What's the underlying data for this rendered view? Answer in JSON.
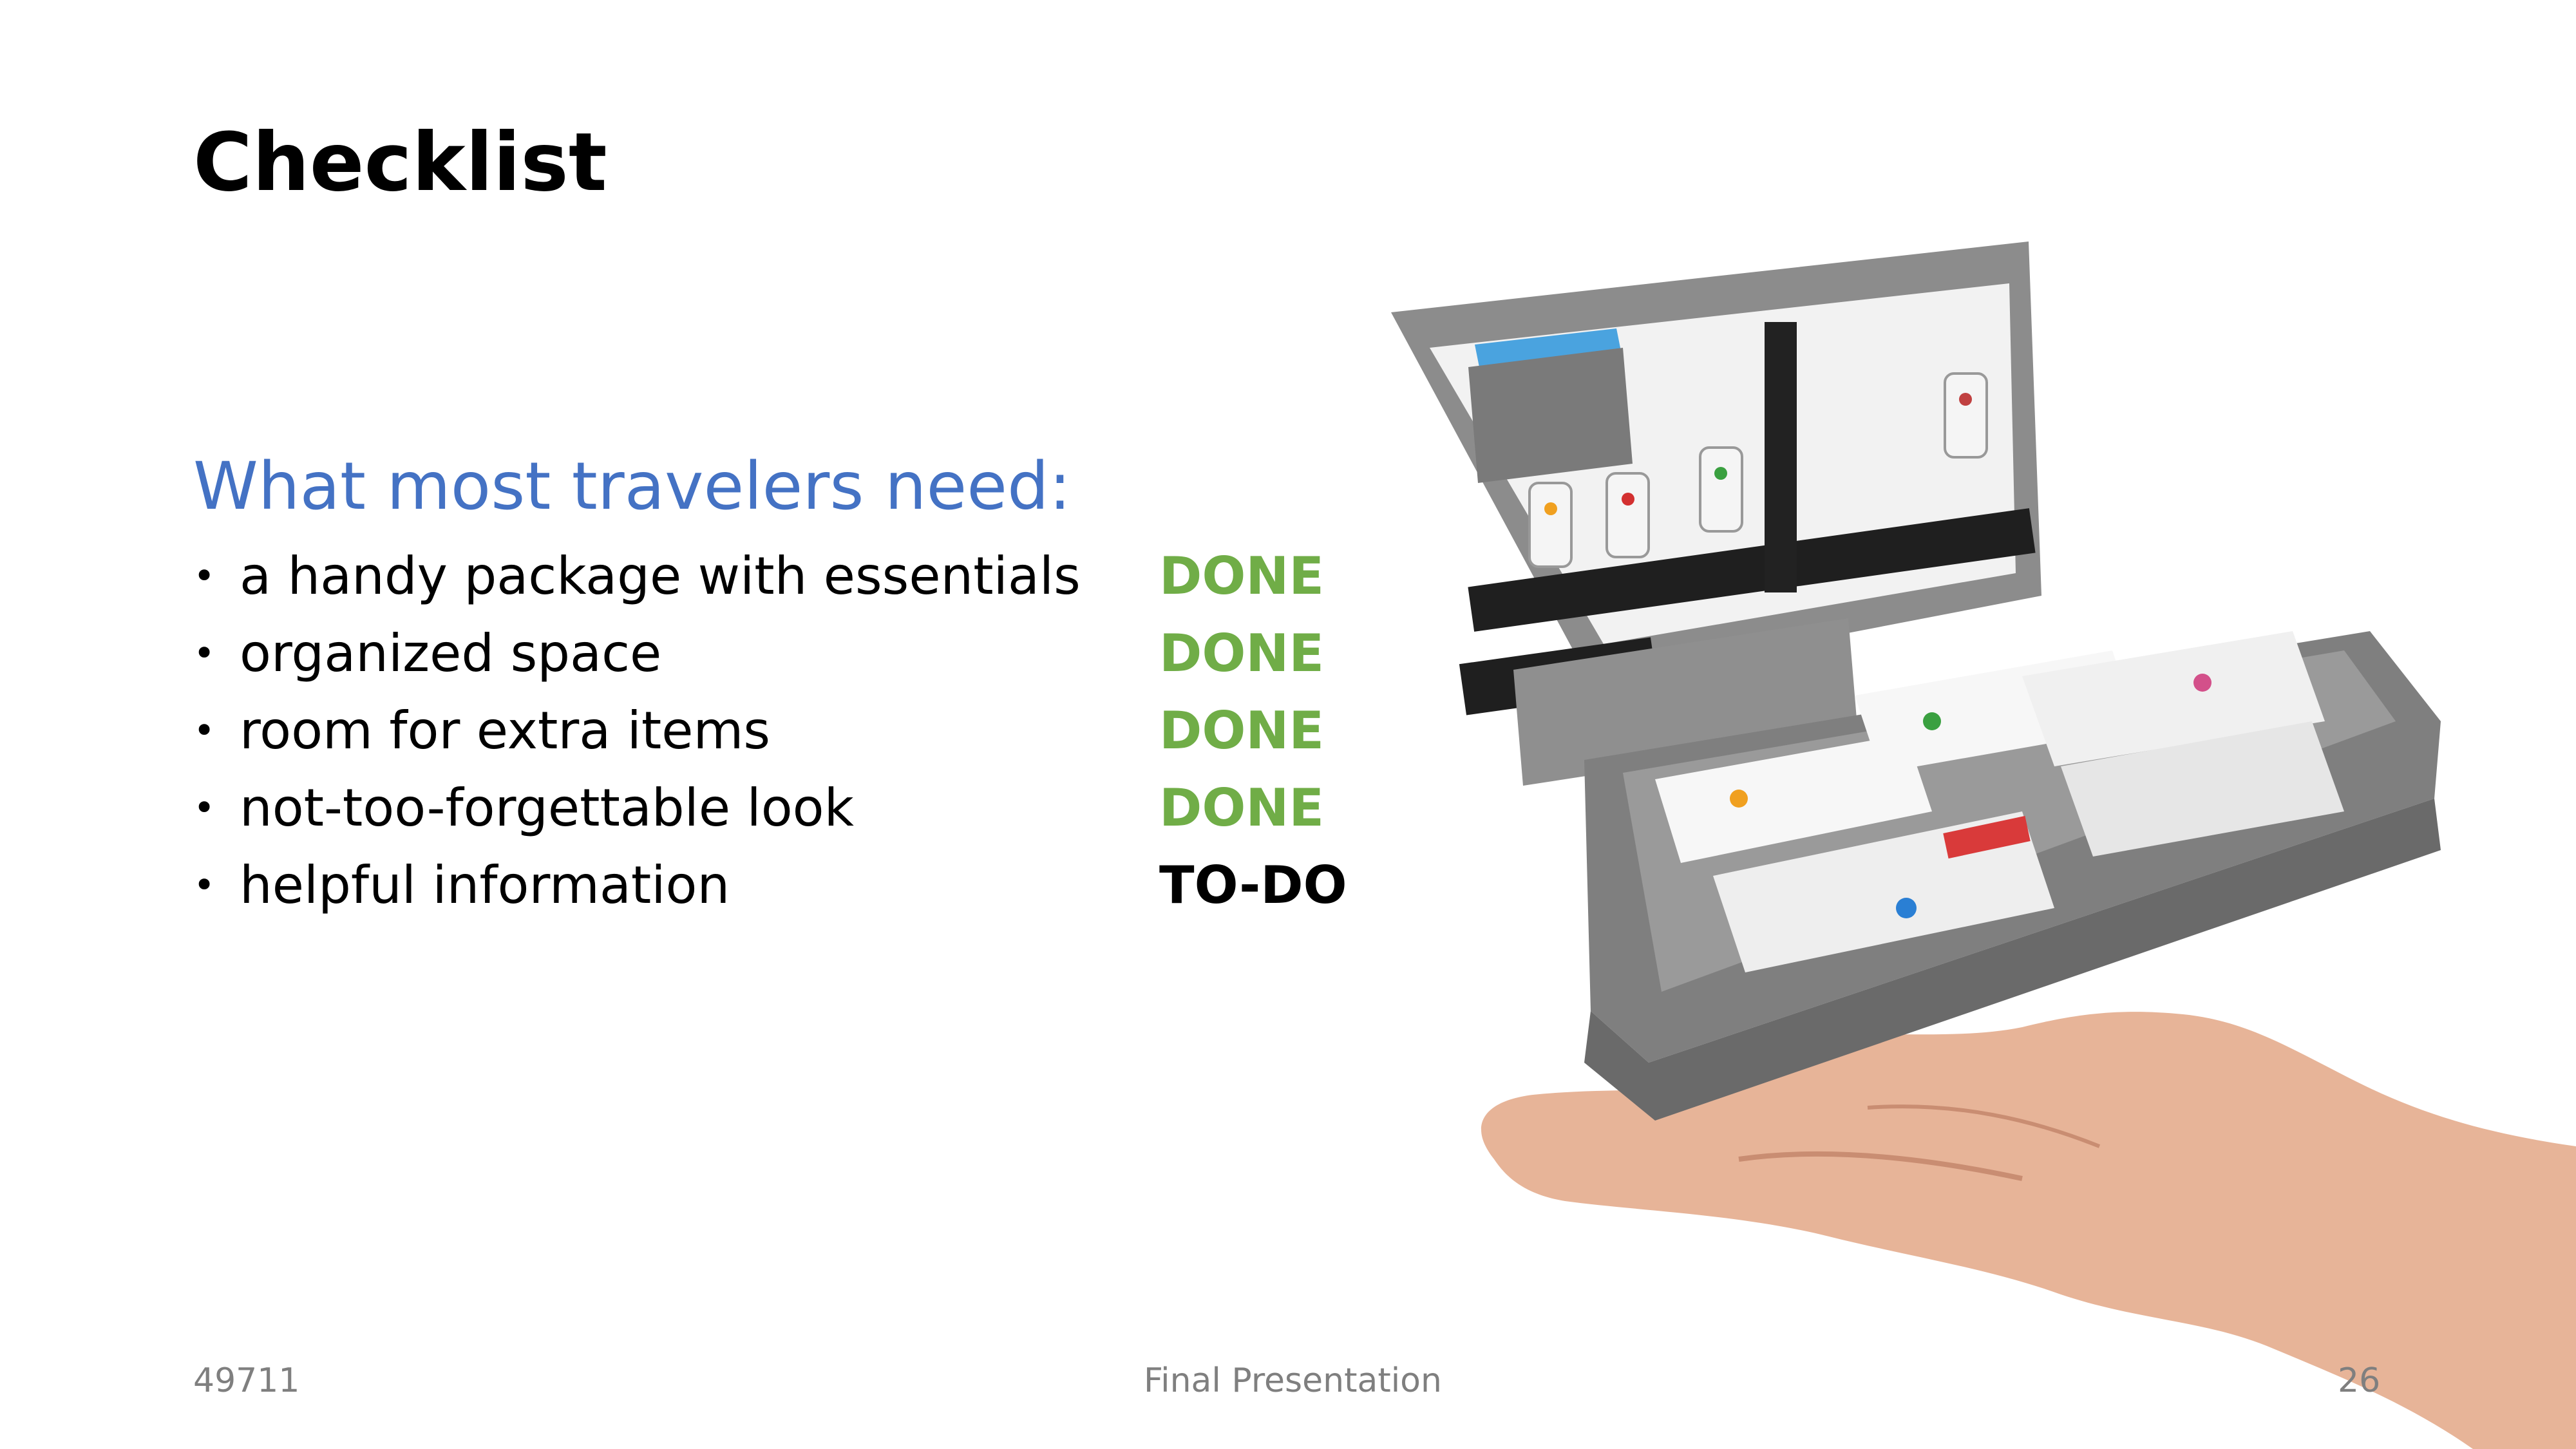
{
  "slide": {
    "title": "Checklist",
    "subtitle": "What most travelers need:",
    "bullet_glyph": "•",
    "items": [
      {
        "text": "a handy package with essentials",
        "status": "DONE"
      },
      {
        "text": "organized space",
        "status": "DONE"
      },
      {
        "text": "room for extra items",
        "status": "DONE"
      },
      {
        "text": "not-too-forgettable look",
        "status": "DONE"
      },
      {
        "text": "helpful information",
        "status": "TO-DO"
      }
    ],
    "colors": {
      "title": "#000000",
      "subtitle": "#4472c4",
      "done": "#70ad47",
      "todo": "#000000",
      "footer": "#7f7f7f"
    }
  },
  "footer": {
    "left": "49711",
    "center": "Final Presentation",
    "right": "26"
  },
  "image": {
    "subject": "open-travel-organizer-pouch-over-hand-photo"
  }
}
